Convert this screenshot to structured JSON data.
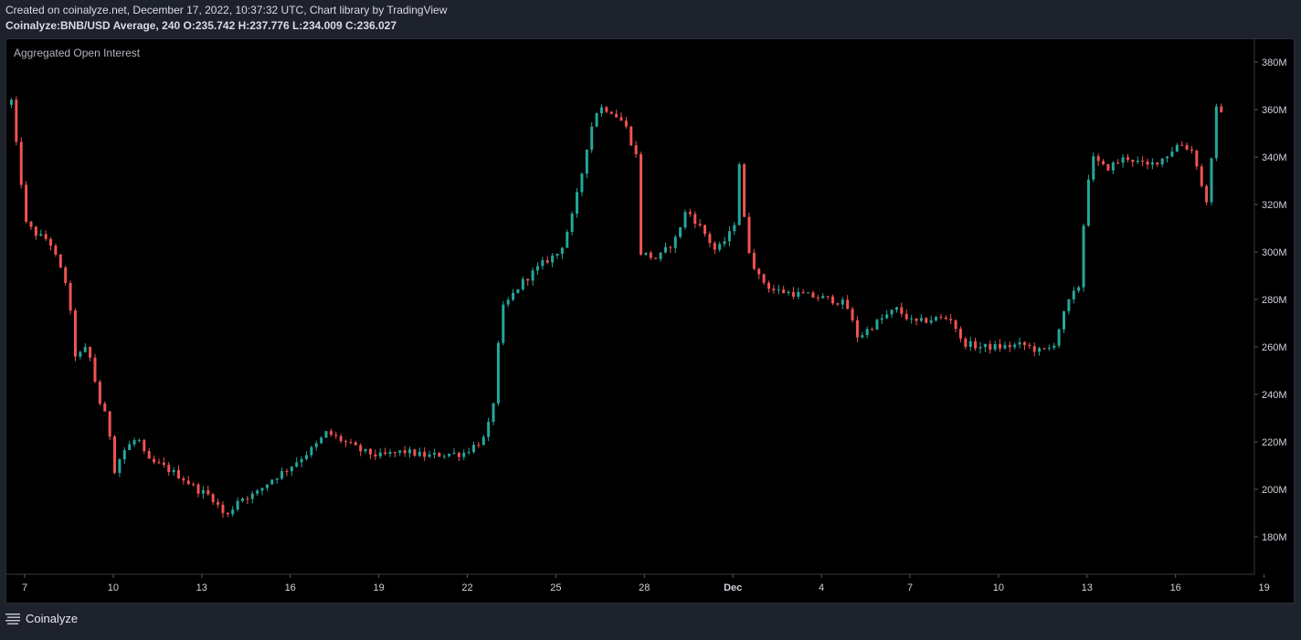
{
  "header": {
    "created_line": "Created on coinalyze.net, December 17, 2022, 10:37:32 UTC, Chart library by TradingView",
    "symbol": "Coinalyze:BNB/USD Average, 240",
    "ohlc": "O:235.742 H:237.776 L:234.009 C:236.027"
  },
  "footer": {
    "brand": "Coinalyze",
    "logo_icon": "menu-lines-icon"
  },
  "colors": {
    "up": "#26a69a",
    "down": "#ef5350",
    "background": "#000000",
    "frame": "#1e222d"
  },
  "chart_data": {
    "type": "candlestick",
    "indicator_title": "Aggregated Open Interest",
    "ylim": [
      170,
      390
    ],
    "y_ticks": [
      180,
      200,
      220,
      240,
      260,
      280,
      300,
      320,
      340,
      360,
      380
    ],
    "y_tick_labels": [
      "180M",
      "200M",
      "220M",
      "240M",
      "260M",
      "280M",
      "300M",
      "320M",
      "340M",
      "360M",
      "380M"
    ],
    "x_ticks": [
      {
        "day": 7,
        "label": "7"
      },
      {
        "day": 10,
        "label": "10"
      },
      {
        "day": 13,
        "label": "13"
      },
      {
        "day": 16,
        "label": "16"
      },
      {
        "day": 19,
        "label": "19"
      },
      {
        "day": 22,
        "label": "22"
      },
      {
        "day": 25,
        "label": "25"
      },
      {
        "day": 28,
        "label": "28"
      },
      {
        "day": 31,
        "label": "Dec"
      },
      {
        "day": 34,
        "label": "4"
      },
      {
        "day": 37,
        "label": "7"
      },
      {
        "day": 40,
        "label": "10"
      },
      {
        "day": 43,
        "label": "13"
      },
      {
        "day": 46,
        "label": "16"
      },
      {
        "day": 49,
        "label": "19"
      }
    ],
    "x_range_days": [
      6.5,
      49.0
    ],
    "anchors": [
      {
        "day": 6.55,
        "value": 362
      },
      {
        "day": 6.7,
        "value": 366
      },
      {
        "day": 6.8,
        "value": 352
      },
      {
        "day": 7.0,
        "value": 335
      },
      {
        "day": 7.2,
        "value": 312
      },
      {
        "day": 7.6,
        "value": 307
      },
      {
        "day": 8.0,
        "value": 305
      },
      {
        "day": 8.3,
        "value": 295
      },
      {
        "day": 8.6,
        "value": 286
      },
      {
        "day": 8.9,
        "value": 255
      },
      {
        "day": 9.3,
        "value": 260
      },
      {
        "day": 9.7,
        "value": 237
      },
      {
        "day": 10.0,
        "value": 228
      },
      {
        "day": 10.2,
        "value": 208
      },
      {
        "day": 10.5,
        "value": 216
      },
      {
        "day": 11.0,
        "value": 222
      },
      {
        "day": 11.3,
        "value": 212
      },
      {
        "day": 11.8,
        "value": 210
      },
      {
        "day": 12.5,
        "value": 205
      },
      {
        "day": 13.0,
        "value": 200
      },
      {
        "day": 13.5,
        "value": 197
      },
      {
        "day": 14.0,
        "value": 188
      },
      {
        "day": 14.4,
        "value": 196
      },
      {
        "day": 15.0,
        "value": 198
      },
      {
        "day": 15.5,
        "value": 204
      },
      {
        "day": 16.0,
        "value": 208
      },
      {
        "day": 16.5,
        "value": 213
      },
      {
        "day": 17.0,
        "value": 218
      },
      {
        "day": 17.4,
        "value": 224
      },
      {
        "day": 18.0,
        "value": 220
      },
      {
        "day": 18.6,
        "value": 216
      },
      {
        "day": 19.2,
        "value": 214
      },
      {
        "day": 20.0,
        "value": 216
      },
      {
        "day": 20.8,
        "value": 214
      },
      {
        "day": 21.5,
        "value": 215
      },
      {
        "day": 22.0,
        "value": 215
      },
      {
        "day": 22.8,
        "value": 222
      },
      {
        "day": 23.1,
        "value": 240
      },
      {
        "day": 23.3,
        "value": 275
      },
      {
        "day": 24.0,
        "value": 287
      },
      {
        "day": 24.8,
        "value": 296
      },
      {
        "day": 25.3,
        "value": 300
      },
      {
        "day": 25.7,
        "value": 314
      },
      {
        "day": 26.0,
        "value": 330
      },
      {
        "day": 26.3,
        "value": 350
      },
      {
        "day": 26.6,
        "value": 361
      },
      {
        "day": 27.0,
        "value": 360
      },
      {
        "day": 27.5,
        "value": 354
      },
      {
        "day": 27.9,
        "value": 340
      },
      {
        "day": 28.0,
        "value": 300
      },
      {
        "day": 28.6,
        "value": 297
      },
      {
        "day": 29.2,
        "value": 305
      },
      {
        "day": 29.6,
        "value": 318
      },
      {
        "day": 30.2,
        "value": 308
      },
      {
        "day": 30.6,
        "value": 300
      },
      {
        "day": 31.2,
        "value": 310
      },
      {
        "day": 31.4,
        "value": 340
      },
      {
        "day": 31.6,
        "value": 305
      },
      {
        "day": 32.0,
        "value": 290
      },
      {
        "day": 32.5,
        "value": 284
      },
      {
        "day": 33.5,
        "value": 282
      },
      {
        "day": 34.5,
        "value": 280
      },
      {
        "day": 35.0,
        "value": 278
      },
      {
        "day": 35.4,
        "value": 264
      },
      {
        "day": 36.0,
        "value": 270
      },
      {
        "day": 36.7,
        "value": 276
      },
      {
        "day": 37.3,
        "value": 270
      },
      {
        "day": 38.0,
        "value": 272
      },
      {
        "day": 38.6,
        "value": 272
      },
      {
        "day": 38.9,
        "value": 262
      },
      {
        "day": 39.5,
        "value": 260
      },
      {
        "day": 40.3,
        "value": 260
      },
      {
        "day": 41.0,
        "value": 261
      },
      {
        "day": 41.6,
        "value": 258
      },
      {
        "day": 42.0,
        "value": 260
      },
      {
        "day": 42.5,
        "value": 278
      },
      {
        "day": 42.9,
        "value": 286
      },
      {
        "day": 43.1,
        "value": 320
      },
      {
        "day": 43.3,
        "value": 340
      },
      {
        "day": 43.8,
        "value": 335
      },
      {
        "day": 44.5,
        "value": 340
      },
      {
        "day": 45.2,
        "value": 336
      },
      {
        "day": 45.8,
        "value": 340
      },
      {
        "day": 46.3,
        "value": 346
      },
      {
        "day": 46.8,
        "value": 342
      },
      {
        "day": 47.0,
        "value": 330
      },
      {
        "day": 47.2,
        "value": 320
      },
      {
        "day": 47.4,
        "value": 340
      },
      {
        "day": 47.55,
        "value": 360
      }
    ]
  }
}
